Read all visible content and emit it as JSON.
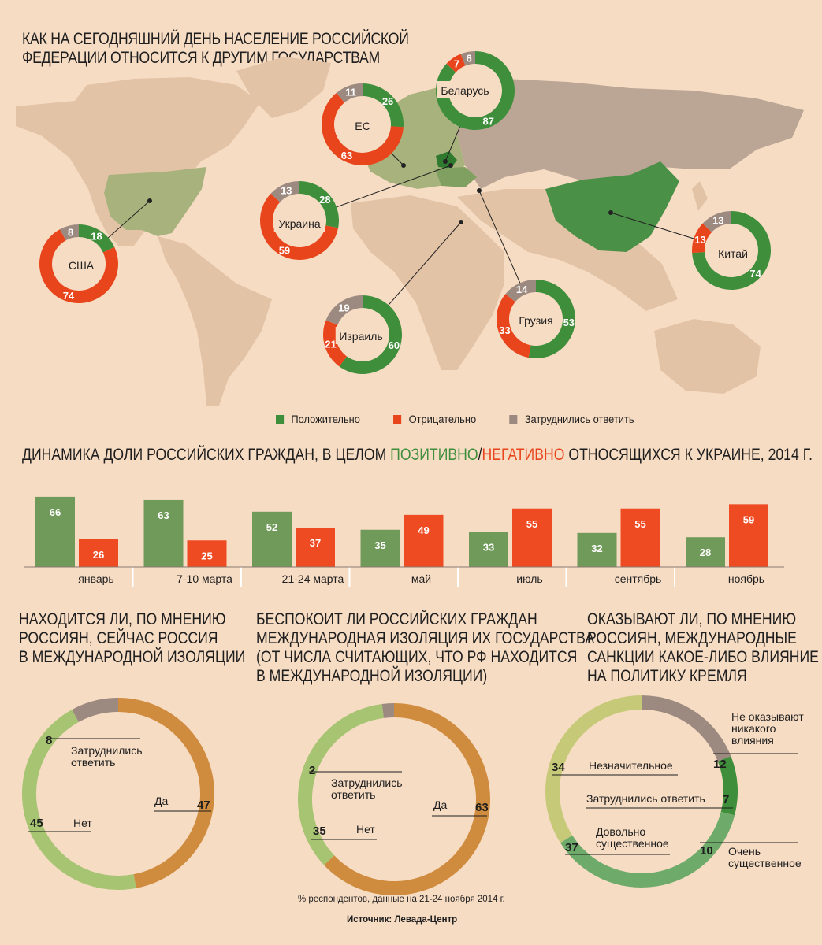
{
  "title_lines": [
    "КАК НА СЕГОДНЯШНИЙ ДЕНЬ НАСЕЛЕНИЕ РОССИЙСКОЙ",
    "ФЕДЕРАЦИИ ОТНОСИТСЯ К ДРУГИМ ГОСУДАРСТВАМ"
  ],
  "colors": {
    "positive": "#3e8e3b",
    "negative": "#e9451c",
    "unsure": "#9c8a80",
    "bar_positive": "#6f9a59",
    "bar_negative": "#ef4b22",
    "orange": "#cf8c3e",
    "light_green": "#a7c472",
    "olive_light": "#c6c978",
    "mid_green": "#6eab6a"
  },
  "legend": {
    "positive": "Положительно",
    "negative": "Отрицательно",
    "unsure": "Затруднились ответить"
  },
  "bar_title": {
    "prefix": "ДИНАМИКА ДОЛИ РОССИЙСКИХ ГРАЖДАН, В ЦЕЛОМ ",
    "positive": "ПОЗИТИВНО",
    "slash": "/",
    "negative": "НЕГАТИВНО",
    "suffix": " ОТНОСЯЩИХСЯ К УКРАИНЕ, 2014 г."
  },
  "q1_title": [
    "НАХОДИТСЯ ЛИ, ПО МНЕНИЮ",
    "РОССИЯН, СЕЙЧАС РОССИЯ",
    "В МЕЖДУНАРОДНОЙ ИЗОЛЯЦИИ"
  ],
  "q2_title": [
    "БЕСПОКОИТ ЛИ РОССИЙСКИХ ГРАЖДАН",
    "МЕЖДУНАРОДНАЯ ИЗОЛЯЦИЯ ИХ ГОСУДАРСТВА",
    "(ОТ ЧИСЛА СЧИТАЮЩИХ, ЧТО РФ НАХОДИТСЯ",
    "В МЕЖДУНАРОДНОЙ ИЗОЛЯЦИИ)"
  ],
  "q3_title": [
    "ОКАЗЫВАЮТ ЛИ, ПО МНЕНИЮ",
    "РОССИЯН, МЕЖДУНАРОДНЫЕ",
    "САНКЦИИ КАКОЕ-ЛИБО ВЛИЯНИЕ",
    "НА ПОЛИТИКУ КРЕМЛЯ"
  ],
  "footnote": "% респондентов, данные на 21-24 ноября 2014 г.",
  "source": "Источник: Левада-Центр",
  "chart_data": [
    {
      "type": "pie",
      "name": "country_donuts",
      "categories": [
        "Положительно",
        "Отрицательно",
        "Затруднились ответить"
      ],
      "countries": [
        {
          "label": "Беларусь",
          "values": [
            87,
            7,
            6
          ]
        },
        {
          "label": "ЕС",
          "values": [
            26,
            63,
            11
          ]
        },
        {
          "label": "Украина",
          "values": [
            28,
            59,
            13
          ]
        },
        {
          "label": "США",
          "values": [
            18,
            74,
            8
          ]
        },
        {
          "label": "Китай",
          "values": [
            74,
            13,
            13
          ]
        },
        {
          "label": "Израиль",
          "values": [
            60,
            21,
            19
          ]
        },
        {
          "label": "Грузия",
          "values": [
            53,
            33,
            14
          ]
        }
      ]
    },
    {
      "type": "bar",
      "name": "ukraine_attitude_2014",
      "categories": [
        "январь",
        "7-10 марта",
        "21-24 марта",
        "май",
        "июль",
        "сентябрь",
        "ноябрь"
      ],
      "series": [
        {
          "values": [
            66,
            63,
            52,
            35,
            33,
            32,
            28
          ]
        },
        {
          "values": [
            26,
            25,
            37,
            49,
            55,
            55,
            59
          ]
        }
      ],
      "ylim": [
        0,
        70
      ]
    },
    {
      "type": "pie",
      "name": "isolation",
      "labels": [
        "Да",
        "Нет",
        "Затруднились ответить"
      ],
      "label_lines": [
        [
          "Да"
        ],
        [
          "Нет"
        ],
        [
          "Затруднились",
          "ответить"
        ]
      ],
      "values": [
        47,
        45,
        8
      ]
    },
    {
      "type": "pie",
      "name": "isolation_concern",
      "labels": [
        "Да",
        "Нет",
        "Затруднились ответить"
      ],
      "label_lines": [
        [
          "Да"
        ],
        [
          "Нет"
        ],
        [
          "Затруднились",
          "ответить"
        ]
      ],
      "values": [
        63,
        35,
        2
      ]
    },
    {
      "type": "pie",
      "name": "sanctions_influence",
      "labels": [
        "Не оказывают никакого влияния",
        "Затруднились ответить",
        "Очень существенное",
        "Довольно существенное",
        "Незначительное"
      ],
      "label_lines": [
        [
          "Не оказывают",
          "никакого",
          "влияния"
        ],
        [
          "Затруднились ответить"
        ],
        [
          "Очень",
          "существенное"
        ],
        [
          "Довольно",
          "существенное"
        ],
        [
          "Незначительное"
        ]
      ],
      "values": [
        12,
        7,
        10,
        37,
        34
      ]
    }
  ]
}
